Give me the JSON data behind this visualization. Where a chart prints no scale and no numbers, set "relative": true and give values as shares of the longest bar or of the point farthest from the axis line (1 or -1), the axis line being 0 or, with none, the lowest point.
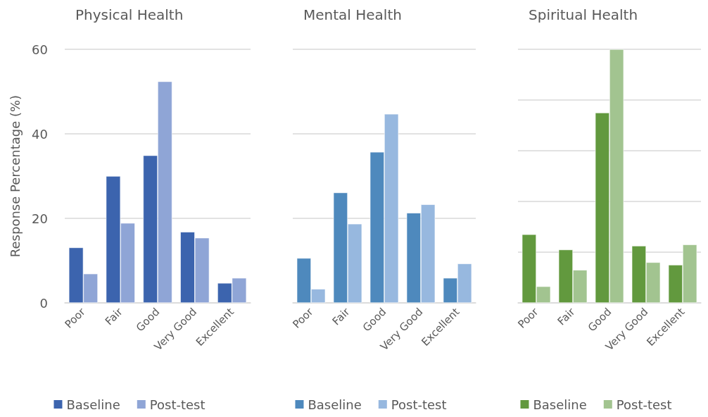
{
  "chart_data": [
    {
      "type": "bar",
      "title": "Physical Health",
      "ylabel": "Response Percentage (%)",
      "categories": [
        "Poor",
        "Fair",
        "Good",
        "Very Good",
        "Excellent"
      ],
      "series": [
        {
          "name": "Baseline",
          "color": "#3c64ae",
          "values": [
            13.1,
            30.0,
            34.9,
            16.8,
            4.7
          ]
        },
        {
          "name": "Post-test",
          "color": "#8fa5d6",
          "values": [
            6.9,
            18.9,
            52.4,
            15.4,
            5.9
          ]
        }
      ],
      "ylim": [
        0,
        60
      ],
      "yticks": [
        0,
        20,
        40,
        60
      ],
      "grid": "y",
      "legend": "bottom"
    },
    {
      "type": "bar",
      "title": "Mental Health",
      "categories": [
        "Poor",
        "Fair",
        "Good",
        "Very Good",
        "Excellent"
      ],
      "series": [
        {
          "name": "Baseline",
          "color": "#4e89bd",
          "values": [
            10.6,
            26.1,
            35.7,
            21.3,
            5.9
          ]
        },
        {
          "name": "Post-test",
          "color": "#97b8df",
          "values": [
            3.3,
            18.7,
            44.7,
            23.3,
            9.3
          ]
        }
      ],
      "ylim": [
        0,
        60
      ],
      "yticks": [
        0,
        20,
        40,
        60
      ],
      "tick_labels": "x",
      "grid": "y",
      "legend": "bottom"
    },
    {
      "type": "bar",
      "title": "Spiritual Health",
      "categories": [
        "Poor",
        "Fair",
        "Good",
        "Very Good",
        "Excellent"
      ],
      "series": [
        {
          "name": "Baseline",
          "color": "#62993e",
          "values": [
            0.27,
            0.21,
            0.75,
            0.225,
            0.15
          ]
        },
        {
          "name": "Post-test",
          "color": "#a2c490",
          "values": [
            0.065,
            0.13,
            1,
            0.16,
            0.23
          ]
        }
      ],
      "relative": true,
      "grid": "y",
      "legend": "bottom"
    }
  ]
}
